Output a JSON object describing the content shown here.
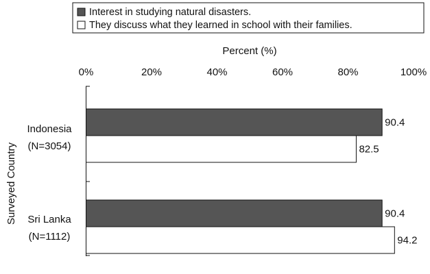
{
  "chart_data": {
    "type": "bar",
    "orientation": "horizontal",
    "xlabel": "Percent (%)",
    "ylabel": "Surveyed Country",
    "xlim": [
      0,
      100
    ],
    "x_ticks": [
      "0%",
      "20%",
      "40%",
      "60%",
      "80%",
      "100%"
    ],
    "x_axis_position": "top",
    "legend_position": "top",
    "grid": false,
    "categories": [
      {
        "line1": "Indonesia",
        "line2": "(N=3054)"
      },
      {
        "line1": "Sri Lanka",
        "line2": "(N=1112)"
      }
    ],
    "series": [
      {
        "name": "Interest in studying natural disasters.",
        "color": "#555555",
        "values": [
          90.4,
          90.4
        ],
        "labels": [
          "90.4",
          "90.4"
        ]
      },
      {
        "name": "They discuss what they learned in school with their families.",
        "color": "#ffffff",
        "values": [
          82.5,
          94.2
        ],
        "labels": [
          "82.5",
          "94.2"
        ]
      }
    ]
  }
}
